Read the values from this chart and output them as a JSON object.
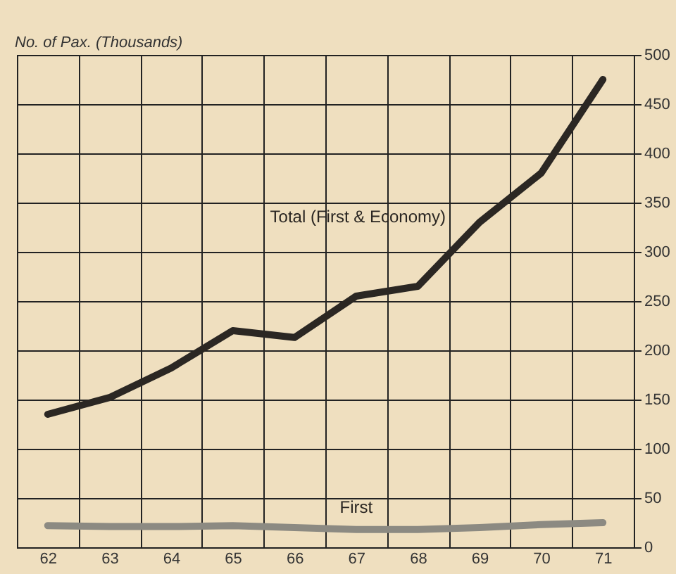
{
  "chart_data": {
    "type": "line",
    "ylabel": "No. of Pax. (Thousands)",
    "categories": [
      "62",
      "63",
      "64",
      "65",
      "66",
      "67",
      "68",
      "69",
      "70",
      "71"
    ],
    "series": [
      {
        "name": "Total (First & Economy)",
        "color": "#2b2723",
        "values": [
          135,
          152,
          182,
          220,
          213,
          255,
          265,
          330,
          380,
          475
        ]
      },
      {
        "name": "First",
        "color": "#8c8a82",
        "values": [
          22,
          21,
          21,
          22,
          20,
          18,
          18,
          20,
          23,
          25
        ]
      }
    ],
    "ylim": [
      0,
      500
    ],
    "yticks": [
      0,
      50,
      100,
      150,
      200,
      250,
      300,
      350,
      400,
      450,
      500
    ],
    "grid": true,
    "legend": false,
    "marker": "none",
    "line_style": "solid"
  }
}
